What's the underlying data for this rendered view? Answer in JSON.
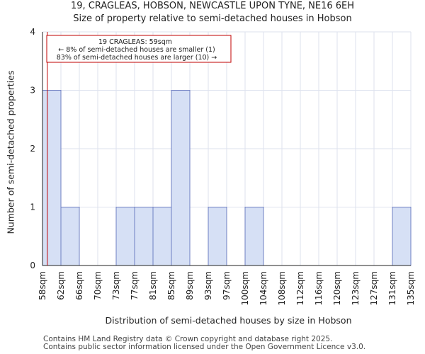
{
  "chart_data": {
    "type": "bar",
    "title": "19, CRAGLEAS, HOBSON, NEWCASTLE UPON TYNE, NE16 6EH",
    "subtitle": "Size of property relative to semi-detached houses in Hobson",
    "xlabel": "Distribution of semi-detached houses by size in Hobson",
    "ylabel": "Number of semi-detached properties",
    "x_tick_labels": [
      "58sqm",
      "62sqm",
      "66sqm",
      "70sqm",
      "73sqm",
      "77sqm",
      "81sqm",
      "85sqm",
      "89sqm",
      "93sqm",
      "97sqm",
      "100sqm",
      "104sqm",
      "108sqm",
      "112sqm",
      "116sqm",
      "120sqm",
      "123sqm",
      "127sqm",
      "131sqm",
      "135sqm"
    ],
    "values": [
      3,
      1,
      0,
      0,
      1,
      1,
      1,
      3,
      0,
      1,
      0,
      1,
      0,
      0,
      0,
      0,
      0,
      0,
      0,
      1
    ],
    "y_ticks": [
      0,
      1,
      2,
      3,
      4
    ],
    "ylim": [
      0,
      4
    ],
    "grid": true,
    "bar_color": "#d6e0f5",
    "bar_edge_color": "#6f7fc2",
    "marker": {
      "x": 59,
      "color": "#c00000"
    },
    "annotation": {
      "lines": [
        "19 CRAGLEAS: 59sqm",
        "← 8% of semi-detached houses are smaller (1)",
        "83% of semi-detached houses are larger (10) →"
      ],
      "border_color": "#c00000"
    }
  },
  "footer": {
    "line1": "Contains HM Land Registry data © Crown copyright and database right 2025.",
    "line2": "Contains public sector information licensed under the Open Government Licence v3.0."
  }
}
